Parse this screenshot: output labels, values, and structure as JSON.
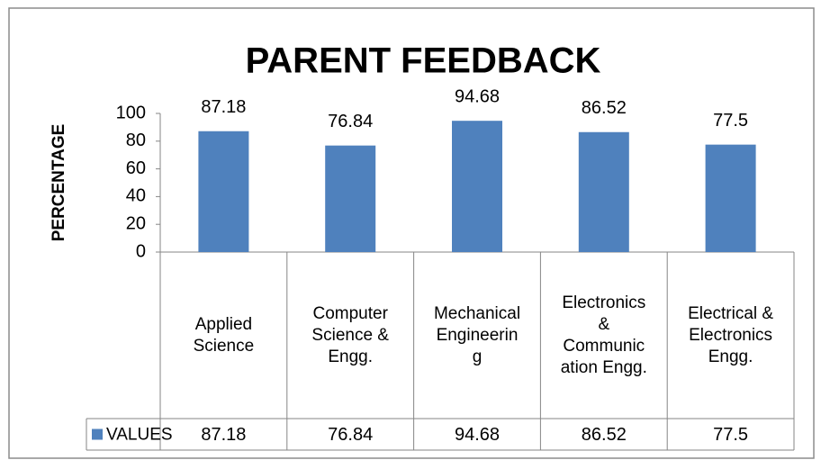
{
  "chart_data": {
    "type": "bar",
    "title": "PARENT FEEDBACK",
    "y_label": "PERCENTAGE",
    "categories": [
      "Applied Science",
      "Computer Science & Engg.",
      "Mechanical Engineering",
      "Electronics & Communication Engg.",
      "Electrical & Electronics Engg."
    ],
    "series": [
      {
        "name": "VALUES",
        "color": "#4f81bd",
        "values": [
          87.18,
          76.84,
          94.68,
          86.52,
          77.5
        ]
      }
    ],
    "ylim": [
      0,
      100
    ],
    "yticks": [
      0,
      20,
      40,
      60,
      80,
      100
    ],
    "grid": false,
    "data_table": true
  }
}
